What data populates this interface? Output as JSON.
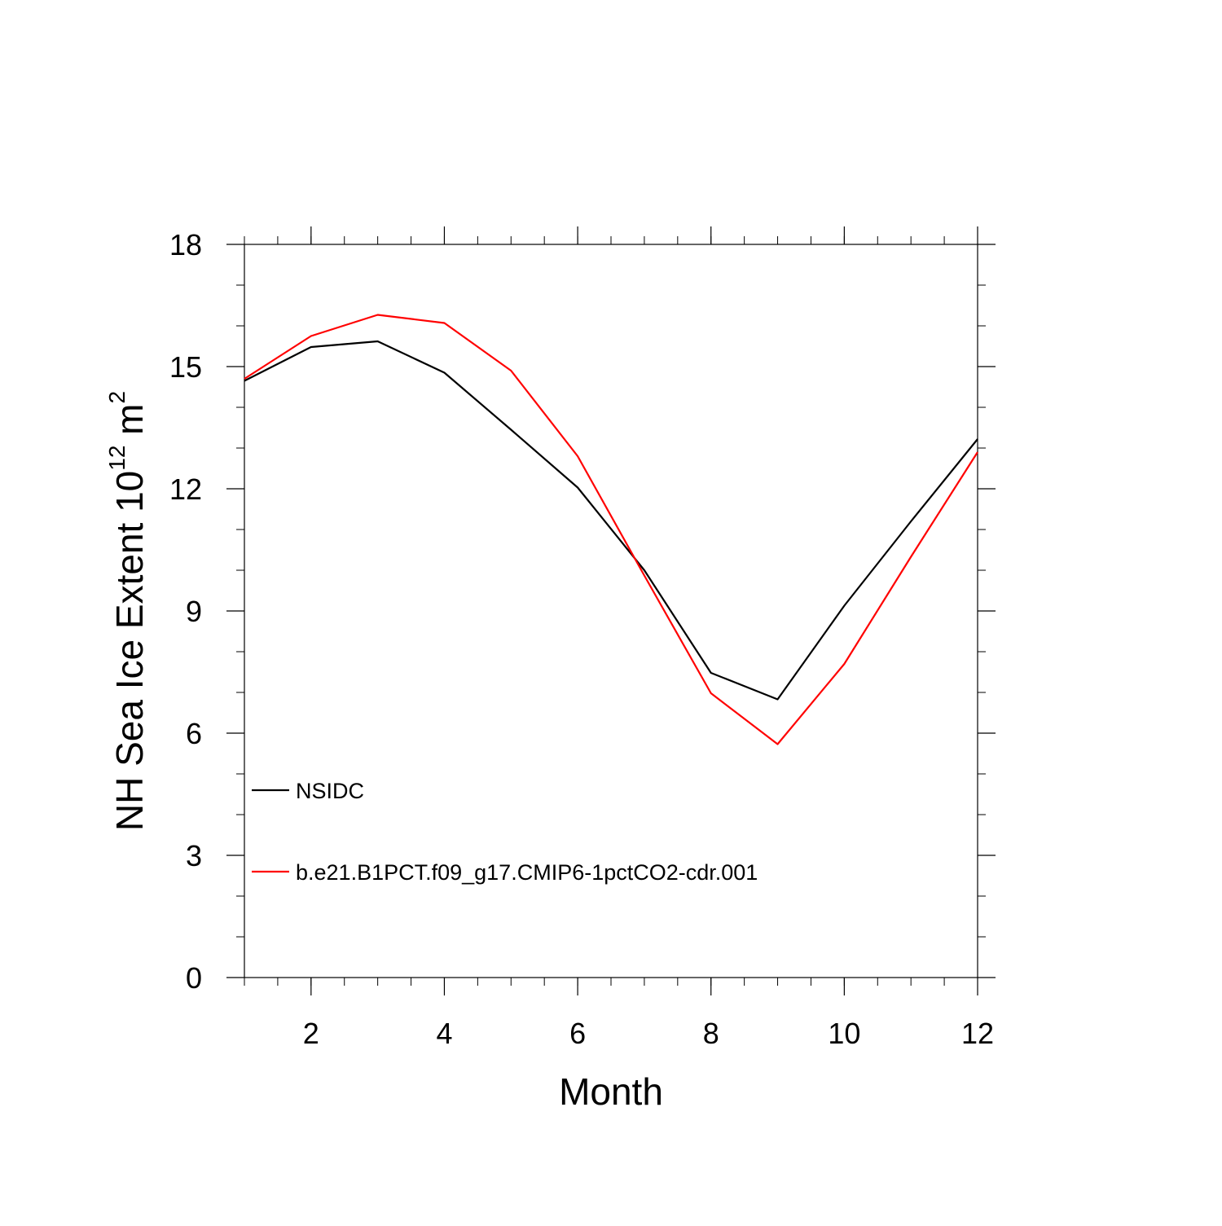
{
  "chart_data": {
    "type": "line",
    "title": "",
    "xlabel": "Month",
    "ylabel_main": "NH Sea Ice Extent 10",
    "ylabel_exp": "12",
    "ylabel_unit": " m",
    "ylabel_unit_exp": "2",
    "xlim": [
      1,
      12
    ],
    "ylim": [
      0,
      18
    ],
    "x_major_ticks": [
      2,
      4,
      6,
      8,
      10,
      12
    ],
    "x_minor_step": 0.5,
    "y_major_ticks": [
      0,
      3,
      6,
      9,
      12,
      15,
      18
    ],
    "y_minor_step": 1,
    "grid": false,
    "legend_position": "lower-left",
    "x": [
      1,
      2,
      3,
      4,
      5,
      6,
      7,
      8,
      9,
      10,
      11,
      12
    ],
    "series": [
      {
        "name": "NSIDC",
        "color": "#000000",
        "values": [
          14.65,
          15.48,
          15.62,
          14.85,
          13.45,
          12.03,
          10.0,
          7.48,
          6.83,
          9.13,
          11.2,
          13.22
        ]
      },
      {
        "name": "b.e21.B1PCT.f09_g17.CMIP6-1pctCO2-cdr.001",
        "color": "#ff0000",
        "values": [
          14.7,
          15.75,
          16.27,
          16.07,
          14.9,
          12.8,
          9.87,
          6.98,
          5.73,
          7.7,
          10.33,
          12.9
        ]
      }
    ]
  }
}
